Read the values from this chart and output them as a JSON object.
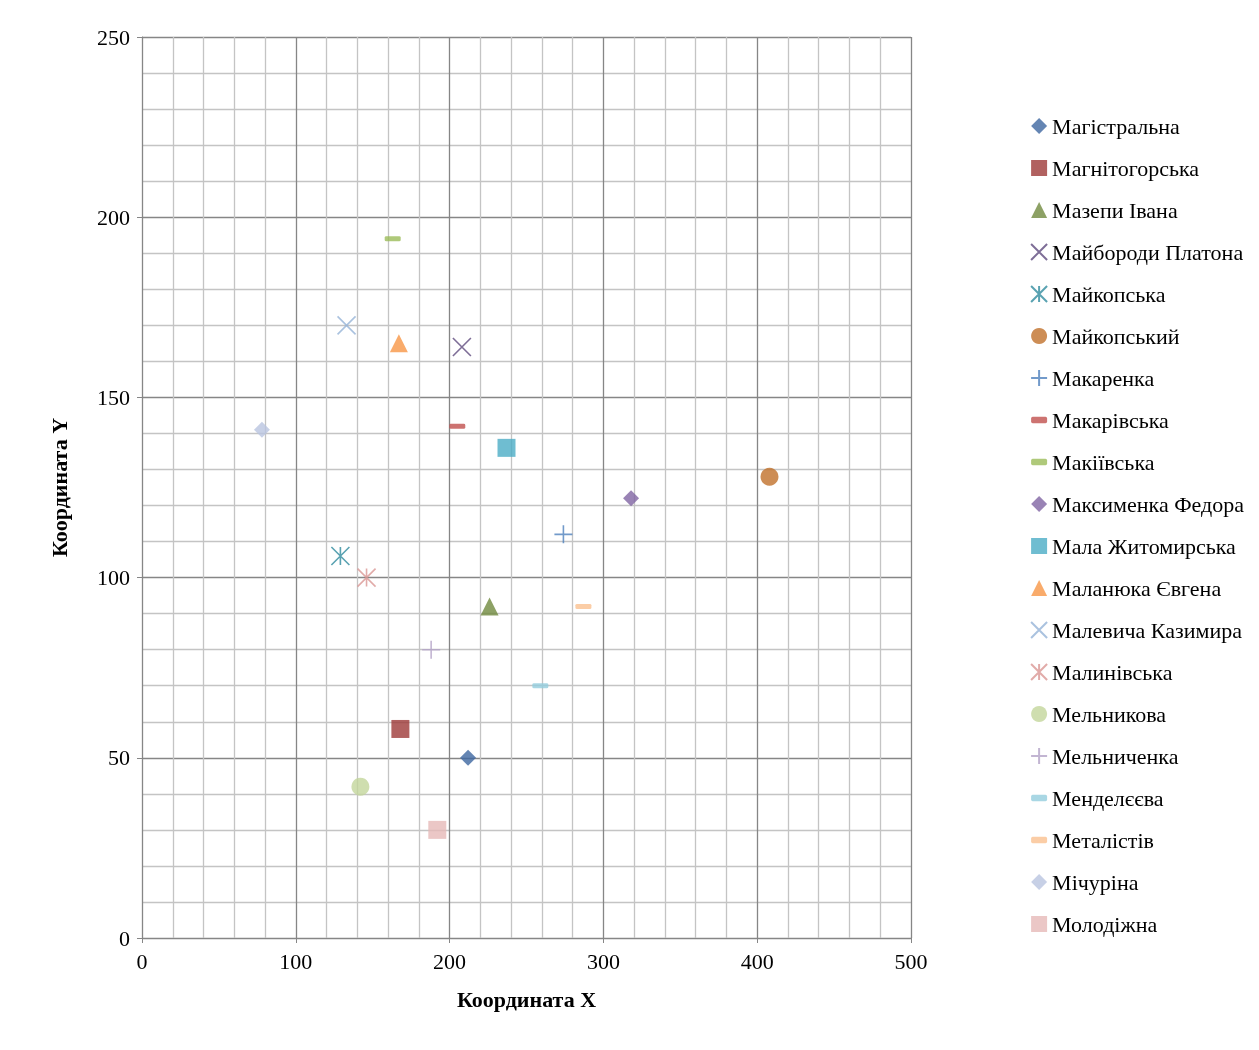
{
  "chart_data": {
    "type": "scatter",
    "xlabel": "Координата X",
    "ylabel": "Координата Y",
    "xlim": [
      0,
      500
    ],
    "xticks": [
      0,
      100,
      200,
      300,
      400,
      500
    ],
    "ylim": [
      0,
      250
    ],
    "yticks": [
      0,
      50,
      100,
      150,
      200,
      250
    ],
    "grid": true,
    "legend": "right",
    "series": [
      {
        "name": "Магістральна",
        "color": "#3d67a0",
        "marker": "diamond",
        "x": [
          212
        ],
        "values": [
          50
        ]
      },
      {
        "name": "Магнітогорська",
        "color": "#9e3a38",
        "marker": "square",
        "x": [
          168
        ],
        "values": [
          58
        ]
      },
      {
        "name": "Мазепи Івана",
        "color": "#71893f",
        "marker": "triangle",
        "x": [
          226
        ],
        "values": [
          92
        ]
      },
      {
        "name": "Майбороди Платона",
        "color": "#5e4a7d",
        "marker": "cross",
        "x": [
          208
        ],
        "values": [
          164
        ]
      },
      {
        "name": "Майкопська",
        "color": "#2f8b9d",
        "x": [
          129
        ],
        "values": [
          106
        ]
      },
      {
        "name": "Майкопський",
        "color": "#c0712a",
        "marker": "circle",
        "x": [
          408
        ],
        "values": [
          128
        ]
      },
      {
        "name": "Макаренка",
        "color": "#4f81bd",
        "x": [
          274
        ],
        "values": [
          112
        ]
      },
      {
        "name": "Макарівська",
        "color": "#c0504d",
        "x": [
          205
        ],
        "values": [
          142
        ]
      },
      {
        "name": "Макіївська",
        "color": "#9bbb59",
        "x": [
          163
        ],
        "values": [
          194
        ]
      },
      {
        "name": "Максименка Федора",
        "color": "#8064a2",
        "marker": "diamond",
        "x": [
          318
        ],
        "values": [
          122
        ]
      },
      {
        "name": "Мала Житомирська",
        "color": "#4bacc6",
        "marker": "square",
        "x": [
          237
        ],
        "values": [
          136
        ]
      },
      {
        "name": "Маланюка Євгена",
        "color": "#f79646",
        "marker": "triangle",
        "x": [
          167
        ],
        "values": [
          165
        ]
      },
      {
        "name": "Малевича Казимира",
        "color": "#95b3d7",
        "marker": "cross",
        "x": [
          133
        ],
        "values": [
          170
        ]
      },
      {
        "name": "Малинівська",
        "color": "#d99694",
        "x": [
          146
        ],
        "values": [
          100
        ]
      },
      {
        "name": "Мельникова",
        "color": "#c3d69b",
        "marker": "circle",
        "x": [
          142
        ],
        "values": [
          42
        ]
      },
      {
        "name": "Мельниченка",
        "color": "#b3a2c7",
        "x": [
          188
        ],
        "values": [
          80
        ]
      },
      {
        "name": "Менделєєва",
        "color": "#93cddd",
        "x": [
          259
        ],
        "values": [
          70
        ]
      },
      {
        "name": "Металістів",
        "color": "#fac090",
        "x": [
          287
        ],
        "values": [
          92
        ]
      },
      {
        "name": "Мічуріна",
        "color": "#b9c4e0",
        "marker": "diamond",
        "x": [
          78
        ],
        "values": [
          141
        ]
      },
      {
        "name": "Молодіжна",
        "color": "#e6b9b8",
        "marker": "square",
        "x": [
          192
        ],
        "values": [
          30
        ]
      }
    ]
  }
}
